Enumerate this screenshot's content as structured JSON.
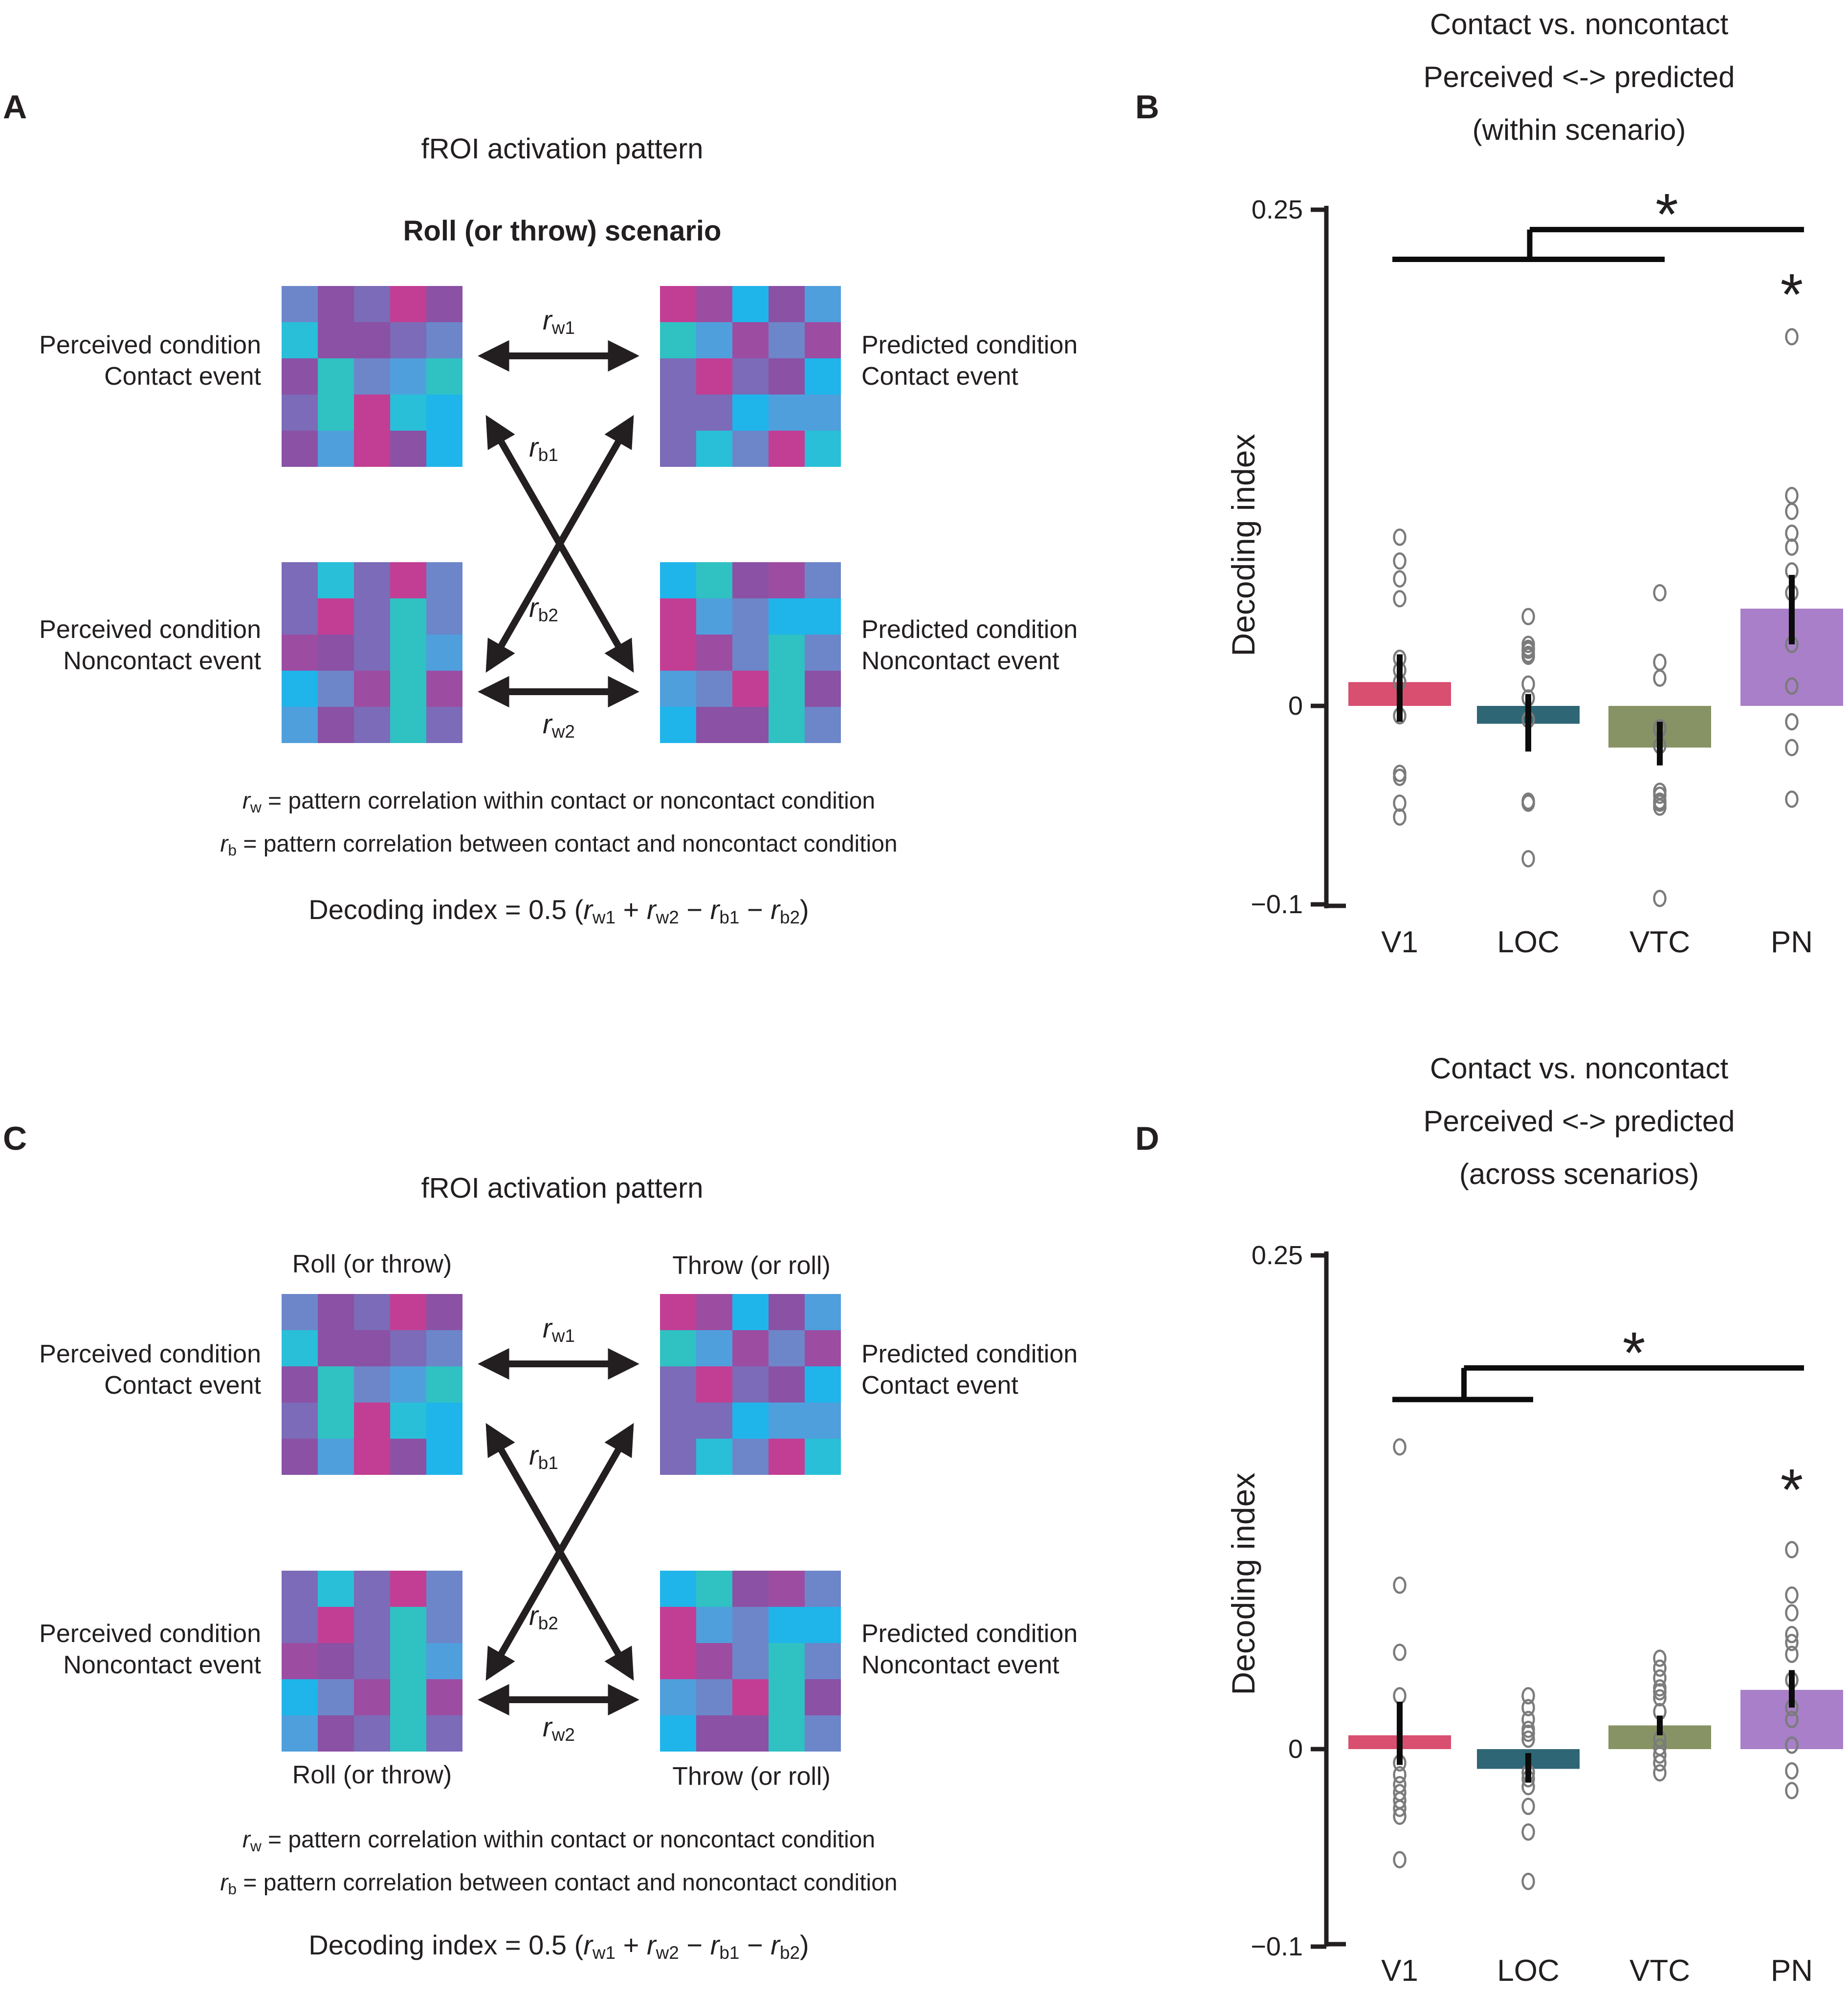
{
  "palette": {
    "M": "#c23e94",
    "P": "#8b51a5",
    "SP": "#7b6bb8",
    "SB": "#6c86c9",
    "B": "#4f9fdc",
    "SKY": "#1fb5ea",
    "CY": "#29bfd9",
    "T": "#30c1c3",
    "MP": "#9c4da2"
  },
  "grids": {
    "tl": [
      [
        "SB",
        "P",
        "SP",
        "M",
        "P"
      ],
      [
        "CY",
        "P",
        "P",
        "SP",
        "SB"
      ],
      [
        "P",
        "T",
        "SB",
        "B",
        "T"
      ],
      [
        "SP",
        "T",
        "M",
        "CY",
        "SKY"
      ],
      [
        "P",
        "B",
        "M",
        "P",
        "SKY"
      ]
    ],
    "tr": [
      [
        "M",
        "MP",
        "SKY",
        "P",
        "B"
      ],
      [
        "T",
        "B",
        "MP",
        "SB",
        "MP"
      ],
      [
        "SP",
        "M",
        "SP",
        "P",
        "SKY"
      ],
      [
        "SP",
        "SP",
        "SKY",
        "B",
        "B"
      ],
      [
        "SP",
        "CY",
        "SB",
        "M",
        "CY"
      ]
    ],
    "bl": [
      [
        "SP",
        "CY",
        "SP",
        "M",
        "SB"
      ],
      [
        "SP",
        "M",
        "SP",
        "T",
        "SB"
      ],
      [
        "MP",
        "P",
        "SP",
        "T",
        "B"
      ],
      [
        "SKY",
        "SB",
        "MP",
        "T",
        "MP"
      ],
      [
        "B",
        "P",
        "SP",
        "T",
        "SP"
      ]
    ],
    "br": [
      [
        "SKY",
        "T",
        "P",
        "MP",
        "SB"
      ],
      [
        "M",
        "B",
        "SB",
        "SKY",
        "SKY"
      ],
      [
        "M",
        "MP",
        "SB",
        "T",
        "SB"
      ],
      [
        "B",
        "SB",
        "M",
        "T",
        "P"
      ],
      [
        "SKY",
        "P",
        "P",
        "T",
        "SB"
      ]
    ]
  },
  "rlabels": {
    "rw1": [
      {
        "i": "r"
      },
      {
        "sub": "w1"
      }
    ],
    "rb1": [
      {
        "i": "r"
      },
      {
        "sub": "b1"
      }
    ],
    "rb2": [
      {
        "i": "r"
      },
      {
        "sub": "b2"
      }
    ],
    "rw2": [
      {
        "i": "r"
      },
      {
        "sub": "w2"
      }
    ]
  },
  "equations": {
    "line1": [
      {
        "i": "r"
      },
      {
        "sub": "w"
      },
      {
        "t": " = pattern correlation within contact or noncontact condition"
      }
    ],
    "line2": [
      {
        "i": "r"
      },
      {
        "sub": "b"
      },
      {
        "t": " = pattern correlation between contact and noncontact condition"
      }
    ],
    "line3": [
      {
        "t": "Decoding index = 0.5 ("
      },
      {
        "i": "r"
      },
      {
        "sub": "w1"
      },
      {
        "t": " + "
      },
      {
        "i": "r"
      },
      {
        "sub": "w2"
      },
      {
        "t": " − "
      },
      {
        "i": "r"
      },
      {
        "sub": "b1"
      },
      {
        "t": " − "
      },
      {
        "i": "r"
      },
      {
        "sub": "b2"
      },
      {
        "t": ")"
      }
    ]
  },
  "panel_a": {
    "letter": "A",
    "title": "fROI activation pattern",
    "subtitle": "Roll (or throw) scenario",
    "labels": {
      "tl1": "Perceived condition",
      "tl2": "Contact event",
      "bl1": "Perceived condition",
      "bl2": "Noncontact event",
      "tr1": "Predicted condition",
      "tr2": "Contact event",
      "br1": "Predicted condition",
      "br2": "Noncontact event"
    }
  },
  "panel_c": {
    "letter": "C",
    "title": "fROI activation pattern",
    "cap_top_left": "Roll (or throw)",
    "cap_top_right": "Throw (or roll)",
    "cap_bottom_left": "Roll (or throw)",
    "cap_bottom_right": "Throw (or roll)",
    "labels": {
      "tl1": "Perceived condition",
      "tl2": "Contact event",
      "bl1": "Perceived condition",
      "bl2": "Noncontact event",
      "tr1": "Predicted condition",
      "tr2": "Contact event",
      "br1": "Predicted condition",
      "br2": "Noncontact event"
    }
  },
  "panel_b_letter": "B",
  "panel_d_letter": "D",
  "chart_data": [
    {
      "id": "B",
      "type": "bar",
      "title_lines": [
        "Contact vs. noncontact",
        "Perceived <-> predicted",
        "(within scenario)"
      ],
      "ylabel": "Decoding index",
      "ylim": [
        -0.1,
        0.25
      ],
      "grid": false,
      "yticks": [
        {
          "v": 0.25,
          "label": "0.25"
        },
        {
          "v": 0,
          "label": "0"
        },
        {
          "v": -0.1,
          "label": "−0.1"
        }
      ],
      "categories": [
        "V1",
        "LOC",
        "VTC",
        "PN"
      ],
      "bar_values": [
        0.012,
        -0.009,
        -0.021,
        0.049
      ],
      "bar_colors": [
        "#d84f6f",
        "#2e6675",
        "#879364",
        "#a87fc8"
      ],
      "error_low": [
        -0.008,
        -0.023,
        -0.03,
        0.031
      ],
      "error_high": [
        0.026,
        0.006,
        -0.008,
        0.066
      ],
      "points": [
        [
          0.085,
          0.073,
          0.064,
          0.054,
          0.024,
          0.018,
          0.012,
          -0.005,
          -0.034,
          -0.036,
          -0.049,
          -0.056
        ],
        [
          0.045,
          0.031,
          0.029,
          0.028,
          0.026,
          0.025,
          0.011,
          0.004,
          -0.007,
          -0.048,
          -0.049,
          -0.077
        ],
        [
          0.057,
          0.022,
          0.014,
          -0.011,
          -0.012,
          -0.02,
          -0.043,
          -0.045,
          -0.048,
          -0.049,
          -0.051,
          -0.097
        ],
        [
          0.186,
          0.106,
          0.098,
          0.087,
          0.08,
          0.068,
          0.057,
          0.031,
          0.01,
          -0.008,
          -0.021,
          -0.047
        ]
      ],
      "significance": {
        "group_bracket": {
          "lower_span": [
            0,
            2
          ],
          "lower_y": 0.225,
          "upper_y": 0.24,
          "upper_to": 3,
          "star": "*"
        },
        "cat_star": {
          "index": 3,
          "y": 0.211,
          "label": "*"
        }
      }
    },
    {
      "id": "D",
      "type": "bar",
      "title_lines": [
        "Contact vs. noncontact",
        "Perceived <-> predicted",
        "(across scenarios)"
      ],
      "ylabel": "Decoding index",
      "ylim": [
        -0.1,
        0.25
      ],
      "grid": false,
      "yticks": [
        {
          "v": 0.25,
          "label": "0.25"
        },
        {
          "v": 0,
          "label": "0"
        },
        {
          "v": -0.1,
          "label": "−0.1"
        }
      ],
      "categories": [
        "V1",
        "LOC",
        "VTC",
        "PN"
      ],
      "bar_values": [
        0.007,
        -0.01,
        0.012,
        0.03
      ],
      "bar_colors": [
        "#d84f6f",
        "#2e6675",
        "#879364",
        "#a87fc8"
      ],
      "error_low": [
        -0.008,
        -0.017,
        0.007,
        0.021
      ],
      "error_high": [
        0.024,
        -0.002,
        0.017,
        0.04
      ],
      "points": [
        [
          0.153,
          0.083,
          0.049,
          0.027,
          -0.007,
          -0.013,
          -0.018,
          -0.022,
          -0.026,
          -0.03,
          -0.034,
          -0.056
        ],
        [
          0.027,
          0.021,
          0.015,
          0.01,
          0.008,
          0.005,
          -0.012,
          -0.015,
          -0.019,
          -0.029,
          -0.042,
          -0.067
        ],
        [
          0.046,
          0.041,
          0.036,
          0.031,
          0.029,
          0.026,
          0.019,
          0.005,
          0.001,
          -0.003,
          -0.007,
          -0.012
        ],
        [
          0.101,
          0.078,
          0.069,
          0.058,
          0.054,
          0.048,
          0.035,
          0.021,
          0.015,
          0.002,
          -0.011,
          -0.021
        ]
      ],
      "significance": {
        "group_bracket": {
          "lower_span": [
            0,
            1
          ],
          "lower_y": 0.177,
          "upper_y": 0.193,
          "upper_to": 3,
          "star": "*"
        },
        "cat_star": {
          "index": 3,
          "y": 0.135,
          "label": "*"
        }
      }
    }
  ]
}
